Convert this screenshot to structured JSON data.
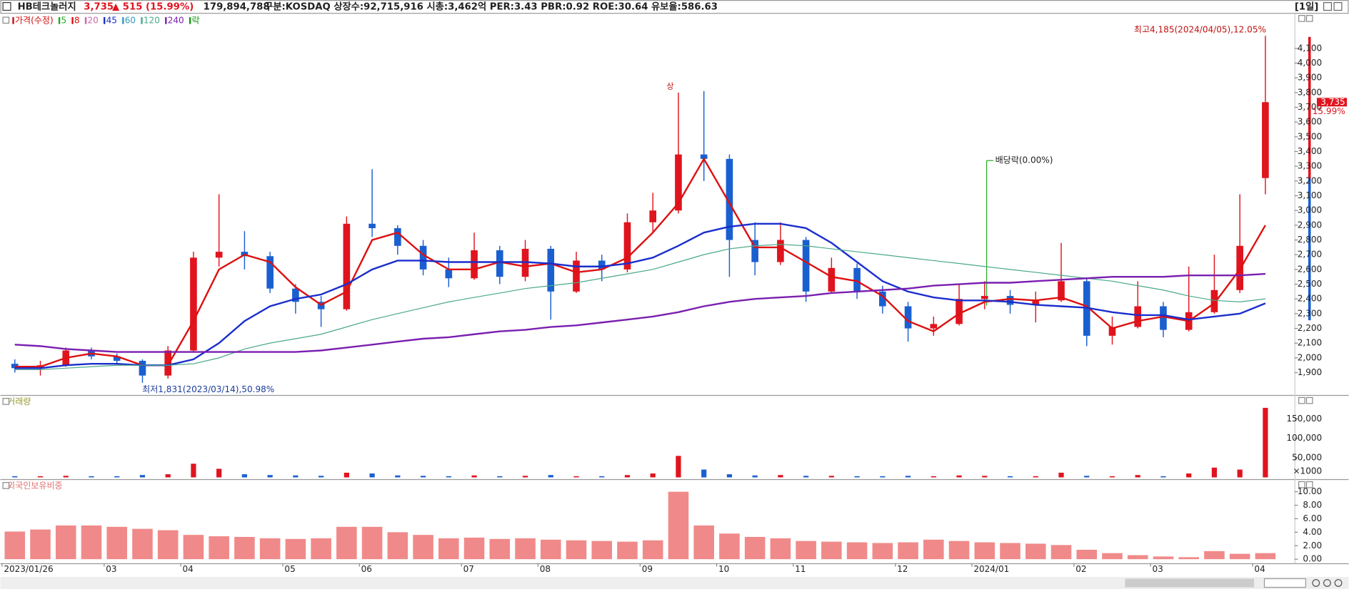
{
  "chart_data": {
    "type": "candlestick",
    "header": {
      "name": "HB테크놀러지",
      "price": "3,735",
      "change": "▲ 515 (15.99%)",
      "volume": "179,894,788",
      "info": "구분:KOSDAQ 상장수:92,715,916 시총:3,462억 PER:3.43 PBR:0.92 ROE:30.64 유보율:586.63",
      "period": "[1일]"
    },
    "categories": [
      "2023/01/26",
      null,
      null,
      null,
      "03",
      null,
      null,
      "04",
      null,
      null,
      null,
      "05",
      null,
      null,
      "06",
      null,
      null,
      null,
      "07",
      null,
      null,
      "08",
      null,
      null,
      null,
      "09",
      null,
      null,
      "10",
      null,
      null,
      "11",
      null,
      null,
      null,
      "12",
      null,
      null,
      "2024/01",
      null,
      null,
      null,
      "02",
      null,
      null,
      "03",
      null,
      null,
      null,
      "04"
    ],
    "open": [
      1960,
      1930,
      1950,
      2050,
      2010,
      1980,
      1880,
      2050,
      2680,
      2720,
      2690,
      2470,
      2380,
      2330,
      2910,
      2880,
      2760,
      2600,
      2540,
      2730,
      2550,
      2740,
      2450,
      2660,
      2600,
      2920,
      3000,
      3380,
      3350,
      2800,
      2650,
      2800,
      2450,
      2610,
      2450,
      2350,
      2200,
      2230,
      2400,
      2420,
      2360,
      2390,
      2520,
      2150,
      2210,
      2350,
      2190,
      2310,
      2460,
      3220
    ],
    "high": [
      1990,
      1980,
      2070,
      2070,
      2030,
      1990,
      2080,
      2720,
      3110,
      2860,
      2720,
      2500,
      2420,
      2960,
      3280,
      2900,
      2800,
      2680,
      2850,
      2760,
      2800,
      2760,
      2720,
      2700,
      2980,
      3120,
      3800,
      3810,
      3380,
      2920,
      2920,
      2820,
      2680,
      2640,
      2490,
      2380,
      2280,
      2500,
      2520,
      2460,
      2450,
      2780,
      2540,
      2280,
      2520,
      2380,
      2620,
      2700,
      3110,
      4185
    ],
    "low": [
      1900,
      1880,
      1940,
      1990,
      1960,
      1831,
      1860,
      2040,
      2620,
      2600,
      2440,
      2300,
      2210,
      2320,
      2820,
      2700,
      2560,
      2480,
      2530,
      2500,
      2520,
      2260,
      2440,
      2520,
      2580,
      2850,
      2980,
      3200,
      2550,
      2560,
      2630,
      2380,
      2440,
      2400,
      2300,
      2110,
      2150,
      2220,
      2330,
      2300,
      2240,
      2380,
      2080,
      2090,
      2200,
      2140,
      2180,
      2300,
      2440,
      3110
    ],
    "close": [
      1930,
      1950,
      2050,
      2010,
      1980,
      1880,
      2050,
      2680,
      2720,
      2690,
      2470,
      2380,
      2330,
      2910,
      2880,
      2760,
      2600,
      2540,
      2730,
      2550,
      2740,
      2450,
      2660,
      2600,
      2920,
      3000,
      3380,
      3350,
      2800,
      2650,
      2800,
      2450,
      2610,
      2450,
      2350,
      2200,
      2230,
      2400,
      2420,
      2360,
      2390,
      2520,
      2150,
      2210,
      2350,
      2190,
      2310,
      2460,
      2760,
      3735
    ],
    "ylim": [
      1760,
      4300
    ],
    "yticks": [
      {
        "value": 1900,
        "label": "1,900"
      },
      {
        "value": 2000,
        "label": "2,000"
      },
      {
        "value": 2100,
        "label": "2,100"
      },
      {
        "value": 2200,
        "label": "2,200"
      },
      {
        "value": 2300,
        "label": "2,300"
      },
      {
        "value": 2400,
        "label": "2,400"
      },
      {
        "value": 2500,
        "label": "2,500"
      },
      {
        "value": 2600,
        "label": "2,600"
      },
      {
        "value": 2700,
        "label": "2,700"
      },
      {
        "value": 2800,
        "label": "2,800"
      },
      {
        "value": 2900,
        "label": "2,900"
      },
      {
        "value": 3000,
        "label": "3,000"
      },
      {
        "value": 3100,
        "label": "3,100"
      },
      {
        "value": 3200,
        "label": "3,200"
      },
      {
        "value": 3300,
        "label": "3,300"
      },
      {
        "value": 3400,
        "label": "3,400"
      },
      {
        "value": 3500,
        "label": "3,500"
      },
      {
        "value": 3600,
        "label": "3,600"
      },
      {
        "value": 3700,
        "label": "3,700"
      },
      {
        "value": 3800,
        "label": "3,800"
      },
      {
        "value": 3900,
        "label": "3,900"
      },
      {
        "value": 4000,
        "label": "4,000"
      },
      {
        "value": 4100,
        "label": "4,100"
      }
    ],
    "up_color": "#e0141e",
    "down_color": "#1a5fd0",
    "series": [
      {
        "name": "가격(수정)",
        "color": "#d01010"
      },
      {
        "name": "5",
        "color": "#22aa22"
      },
      {
        "name": "8",
        "color": "#dd1111",
        "values": [
          1940,
          1940,
          2000,
          2030,
          2010,
          1950,
          1950,
          2250,
          2600,
          2700,
          2650,
          2480,
          2360,
          2450,
          2800,
          2850,
          2700,
          2600,
          2600,
          2650,
          2620,
          2640,
          2580,
          2600,
          2680,
          2850,
          3050,
          3350,
          3050,
          2750,
          2750,
          2650,
          2550,
          2520,
          2420,
          2250,
          2180,
          2300,
          2380,
          2400,
          2390,
          2410,
          2350,
          2200,
          2250,
          2280,
          2250,
          2370,
          2600,
          2900
        ]
      },
      {
        "name": "20",
        "color": "#cc66aa"
      },
      {
        "name": "45",
        "color": "#1a2ecc",
        "values": [
          1930,
          1930,
          1950,
          1960,
          1960,
          1950,
          1950,
          1990,
          2100,
          2250,
          2350,
          2400,
          2430,
          2500,
          2600,
          2660,
          2660,
          2650,
          2650,
          2650,
          2650,
          2640,
          2620,
          2620,
          2640,
          2680,
          2760,
          2850,
          2890,
          2910,
          2910,
          2880,
          2780,
          2650,
          2520,
          2450,
          2410,
          2390,
          2390,
          2380,
          2360,
          2350,
          2340,
          2310,
          2290,
          2290,
          2260,
          2280,
          2300,
          2370
        ]
      },
      {
        "name": "60",
        "color": "#3399bb"
      },
      {
        "name": "120",
        "color": "#4aa88a",
        "values": [
          1920,
          1920,
          1930,
          1940,
          1950,
          1950,
          1950,
          1960,
          2000,
          2060,
          2100,
          2130,
          2160,
          2210,
          2260,
          2300,
          2340,
          2380,
          2410,
          2440,
          2470,
          2490,
          2510,
          2540,
          2570,
          2600,
          2650,
          2700,
          2740,
          2760,
          2770,
          2760,
          2740,
          2720,
          2700,
          2680,
          2660,
          2640,
          2620,
          2600,
          2580,
          2560,
          2540,
          2520,
          2490,
          2460,
          2420,
          2390,
          2380,
          2400
        ]
      },
      {
        "name": "240",
        "color": "#7a1fb0",
        "values": [
          2090,
          2080,
          2060,
          2050,
          2040,
          2040,
          2040,
          2040,
          2040,
          2040,
          2040,
          2040,
          2050,
          2070,
          2090,
          2110,
          2130,
          2140,
          2160,
          2180,
          2190,
          2210,
          2220,
          2240,
          2260,
          2280,
          2310,
          2350,
          2380,
          2400,
          2410,
          2420,
          2440,
          2450,
          2460,
          2470,
          2490,
          2500,
          2510,
          2510,
          2520,
          2530,
          2540,
          2550,
          2550,
          2550,
          2560,
          2560,
          2560,
          2570
        ]
      },
      {
        "name": "락",
        "color": "#119911"
      }
    ],
    "annotations": {
      "high": "최고4,185(2024/04/05),12.05%",
      "limit_up": "상",
      "dividend": "배당락(0.00%)",
      "low": "최저1,831(2023/03/14),50.98%",
      "current_price": "3,735",
      "current_change": "15.99%"
    },
    "volume": {
      "title": "거래량",
      "unit_label": "×1000",
      "values": [
        3000,
        3000,
        4000,
        3000,
        3000,
        6000,
        8000,
        35000,
        22000,
        8000,
        6000,
        5000,
        4000,
        12000,
        10000,
        5000,
        4000,
        3000,
        5000,
        3000,
        4000,
        6000,
        3000,
        3000,
        6000,
        10000,
        55000,
        20000,
        8000,
        5000,
        6000,
        4000,
        4000,
        3000,
        3000,
        4000,
        3000,
        5000,
        4000,
        3000,
        3000,
        12000,
        4000,
        3000,
        6000,
        3000,
        10000,
        25000,
        20000,
        178000
      ],
      "ylim": [
        0,
        189000
      ],
      "yticks": [
        {
          "value": 50000,
          "label": "50,000"
        },
        {
          "value": 100000,
          "label": "100,000"
        },
        {
          "value": 150000,
          "label": "150,000"
        }
      ]
    },
    "foreign": {
      "title": "외국인보유비중",
      "color": "#f08a8a",
      "values": [
        4.1,
        4.4,
        5.0,
        5.0,
        4.8,
        4.5,
        4.3,
        3.6,
        3.4,
        3.3,
        3.1,
        3.0,
        3.1,
        4.8,
        4.8,
        4.0,
        3.6,
        3.1,
        3.2,
        3.0,
        3.1,
        2.9,
        2.8,
        2.7,
        2.6,
        2.8,
        10.0,
        5.0,
        3.8,
        3.3,
        3.1,
        2.7,
        2.6,
        2.5,
        2.4,
        2.5,
        2.9,
        2.7,
        2.5,
        2.4,
        2.3,
        2.1,
        1.4,
        0.9,
        0.6,
        0.4,
        0.3,
        1.2,
        0.8,
        0.9
      ],
      "ylim": [
        -0.6,
        10.6
      ],
      "yticks": [
        {
          "value": 0,
          "label": "0.00"
        },
        {
          "value": 2,
          "label": "2.00"
        },
        {
          "value": 4,
          "label": "4.00"
        },
        {
          "value": 6,
          "label": "6.00"
        },
        {
          "value": 8,
          "label": "8.00"
        },
        {
          "value": 10,
          "label": "10.00"
        }
      ]
    }
  }
}
